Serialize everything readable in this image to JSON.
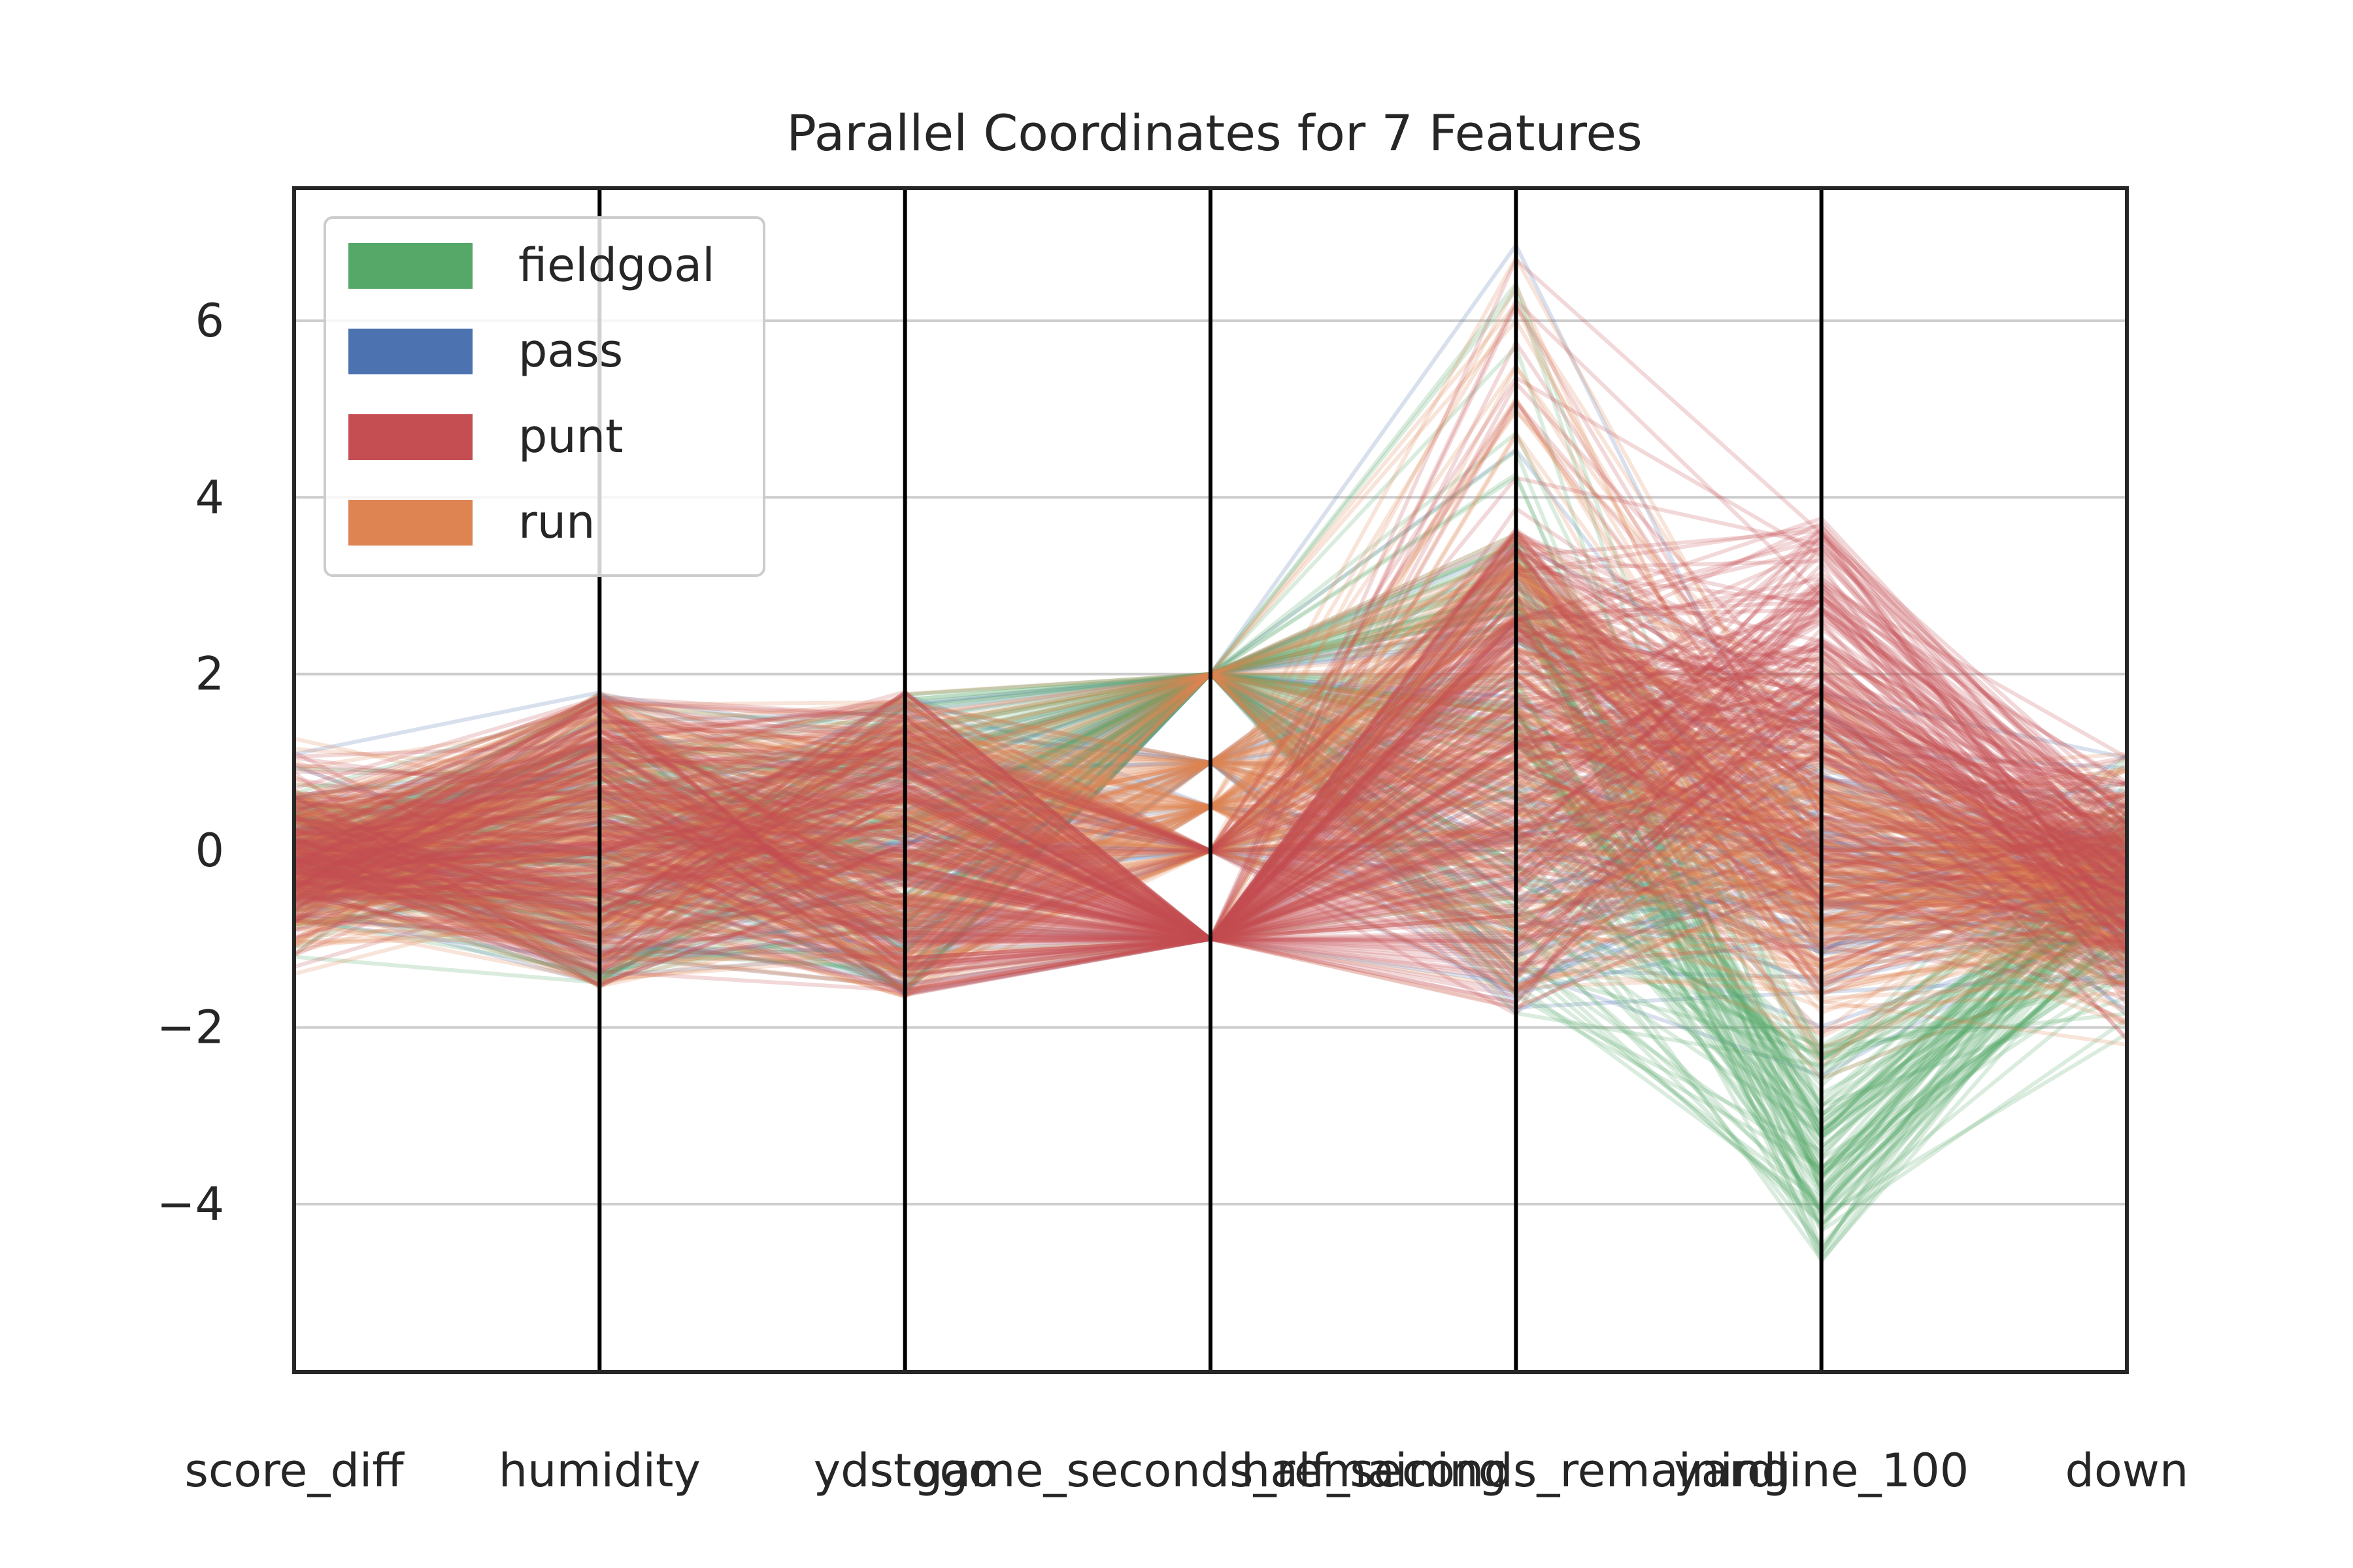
{
  "chart_data": {
    "type": "parallel_coordinates",
    "title": "Parallel Coordinates for 7 Features",
    "axes": [
      "score_diff",
      "humidity",
      "ydstogo",
      "game_seconds_remaining",
      "half_seconds_remaining",
      "yardline_100",
      "down"
    ],
    "ylim": [
      -5.9,
      7.5
    ],
    "yticks": [
      -4,
      -2,
      0,
      2,
      4,
      6
    ],
    "ytick_labels": [
      "−4",
      "−2",
      "0",
      "2",
      "4",
      "6"
    ],
    "grid": true,
    "legend_placement": "upper-left",
    "classes": [
      "fieldgoal",
      "pass",
      "punt",
      "run"
    ],
    "class_colors": {
      "fieldgoal": "#55a868",
      "pass": "#4c72b0",
      "punt": "#c44e52",
      "run": "#dd8452"
    },
    "axis_ranges": {
      "score_diff": [
        -2.1,
        1.9
      ],
      "humidity": [
        -1.55,
        1.8
      ],
      "ydstogo": [
        -1.65,
        1.8
      ],
      "game_seconds_remaining": [
        -1.0,
        2.0
      ],
      "half_seconds_remaining": [
        -1.85,
        6.9
      ],
      "yardline_100": [
        -5.35,
        5.15
      ],
      "down": [
        -2.85,
        2.0
      ]
    },
    "down_levels": [
      -1.0,
      0.0,
      0.5,
      1.0,
      2.0
    ]
  }
}
